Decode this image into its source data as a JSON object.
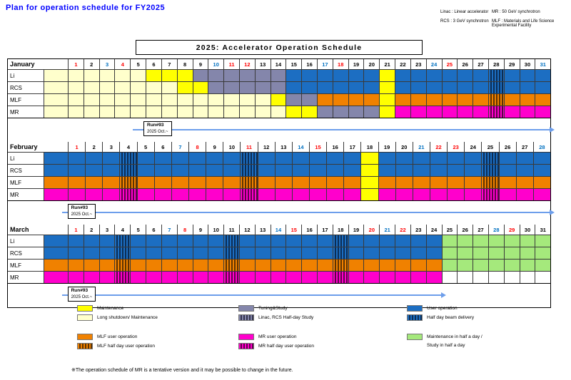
{
  "title": "Plan for operation schedule for FY2025",
  "abbr": {
    "l1a": "Linac : Linear accelerator",
    "l1b": "MR : 50 GeV synchrotron",
    "l2a": "RCS : 3 GeV synchrotron",
    "l2b": "MLF : Materials and Life Science Experimental Facility"
  },
  "colors": {
    "maintenance": "#FFFF00",
    "long_shutdown": "#FFFFCC",
    "tuning_study": "#8486AB",
    "user_operation": "#1C6EC2",
    "mlf_user_operation": "#F08100",
    "mr_user_operation": "#FF00CC",
    "half_day_green": "#A5E97C",
    "day_saturday": "#0070C0",
    "day_sunday_holiday": "#FF0000",
    "title_blue": "#0000FF",
    "run_arrow": "#6D9EEB"
  },
  "chart_data": {
    "type": "gantt",
    "title": "2025:  Accelerator Operation Schedule",
    "facilities": [
      "Li",
      "RCS",
      "MLF",
      "MR"
    ],
    "legend_position": "bottom",
    "months": [
      {
        "name": "January",
        "days": 31,
        "sundays_holidays": [
          1,
          4,
          11,
          12,
          18,
          25
        ],
        "saturdays": [
          3,
          10,
          17,
          24,
          31
        ],
        "rows": [
          {
            "label": "Li",
            "prev": "shutdown",
            "segments": [
              {
                "from": 1,
                "to": 5,
                "type": "shutdown"
              },
              {
                "from": 6,
                "to": 8,
                "type": "maintenance"
              },
              {
                "from": 9,
                "to": 14,
                "type": "tuning"
              },
              {
                "from": 15,
                "to": 20,
                "type": "user"
              },
              {
                "from": 21,
                "to": 21,
                "type": "maintenance"
              },
              {
                "from": 22,
                "to": 27,
                "type": "user"
              },
              {
                "from": 28,
                "to": 28,
                "type": "user_half"
              },
              {
                "from": 29,
                "to": 31,
                "type": "user"
              }
            ]
          },
          {
            "label": "RCS",
            "prev": "shutdown",
            "segments": [
              {
                "from": 1,
                "to": 7,
                "type": "shutdown"
              },
              {
                "from": 8,
                "to": 9,
                "type": "maintenance"
              },
              {
                "from": 10,
                "to": 14,
                "type": "tuning"
              },
              {
                "from": 15,
                "to": 20,
                "type": "user"
              },
              {
                "from": 21,
                "to": 21,
                "type": "maintenance"
              },
              {
                "from": 22,
                "to": 27,
                "type": "user"
              },
              {
                "from": 28,
                "to": 28,
                "type": "user_half"
              },
              {
                "from": 29,
                "to": 31,
                "type": "user"
              }
            ]
          },
          {
            "label": "MLF",
            "prev": "shutdown",
            "segments": [
              {
                "from": 1,
                "to": 13,
                "type": "shutdown"
              },
              {
                "from": 14,
                "to": 14,
                "type": "maintenance"
              },
              {
                "from": 15,
                "to": 16,
                "type": "tuning"
              },
              {
                "from": 17,
                "to": 20,
                "type": "mlf_user"
              },
              {
                "from": 21,
                "to": 21,
                "type": "maintenance"
              },
              {
                "from": 22,
                "to": 27,
                "type": "mlf_user"
              },
              {
                "from": 28,
                "to": 28,
                "type": "mlf_half"
              },
              {
                "from": 29,
                "to": 31,
                "type": "mlf_user"
              }
            ]
          },
          {
            "label": "MR",
            "prev": "shutdown",
            "segments": [
              {
                "from": 1,
                "to": 14,
                "type": "shutdown"
              },
              {
                "from": 15,
                "to": 16,
                "type": "maintenance"
              },
              {
                "from": 17,
                "to": 20,
                "type": "tuning"
              },
              {
                "from": 21,
                "to": 21,
                "type": "maintenance"
              },
              {
                "from": 22,
                "to": 27,
                "type": "mr_user"
              },
              {
                "from": 28,
                "to": 28,
                "type": "mr_half"
              },
              {
                "from": 29,
                "to": 31,
                "type": "mr_user"
              }
            ]
          }
        ],
        "run": {
          "label": "Run#93",
          "period": "2025 Oct.~",
          "box_left_pct": 25,
          "arrow_start_pct": 23,
          "arrow_end_pct": 100
        }
      },
      {
        "name": "February",
        "days": 28,
        "sundays_holidays": [
          1,
          8,
          11,
          15,
          22,
          23
        ],
        "saturdays": [
          7,
          14,
          21,
          28
        ],
        "rows": [
          {
            "label": "Li",
            "prev": "user",
            "segments": [
              {
                "from": 1,
                "to": 3,
                "type": "user"
              },
              {
                "from": 4,
                "to": 4,
                "type": "user_half"
              },
              {
                "from": 5,
                "to": 10,
                "type": "user"
              },
              {
                "from": 11,
                "to": 11,
                "type": "user_half"
              },
              {
                "from": 12,
                "to": 17,
                "type": "user"
              },
              {
                "from": 18,
                "to": 18,
                "type": "maintenance"
              },
              {
                "from": 19,
                "to": 24,
                "type": "user"
              },
              {
                "from": 25,
                "to": 25,
                "type": "user_half"
              },
              {
                "from": 26,
                "to": 28,
                "type": "user"
              }
            ]
          },
          {
            "label": "RCS",
            "prev": "user",
            "segments": [
              {
                "from": 1,
                "to": 3,
                "type": "user"
              },
              {
                "from": 4,
                "to": 4,
                "type": "user_half"
              },
              {
                "from": 5,
                "to": 10,
                "type": "user"
              },
              {
                "from": 11,
                "to": 11,
                "type": "user_half"
              },
              {
                "from": 12,
                "to": 17,
                "type": "user"
              },
              {
                "from": 18,
                "to": 18,
                "type": "maintenance"
              },
              {
                "from": 19,
                "to": 24,
                "type": "user"
              },
              {
                "from": 25,
                "to": 25,
                "type": "user_half"
              },
              {
                "from": 26,
                "to": 28,
                "type": "user"
              }
            ]
          },
          {
            "label": "MLF",
            "prev": "mlf_user",
            "segments": [
              {
                "from": 1,
                "to": 3,
                "type": "mlf_user"
              },
              {
                "from": 4,
                "to": 4,
                "type": "mlf_half"
              },
              {
                "from": 5,
                "to": 10,
                "type": "mlf_user"
              },
              {
                "from": 11,
                "to": 11,
                "type": "mlf_half"
              },
              {
                "from": 12,
                "to": 17,
                "type": "mlf_user"
              },
              {
                "from": 18,
                "to": 18,
                "type": "maintenance"
              },
              {
                "from": 19,
                "to": 24,
                "type": "mlf_user"
              },
              {
                "from": 25,
                "to": 25,
                "type": "mlf_half"
              },
              {
                "from": 26,
                "to": 28,
                "type": "mlf_user"
              }
            ]
          },
          {
            "label": "MR",
            "prev": "mr_user",
            "segments": [
              {
                "from": 1,
                "to": 3,
                "type": "mr_user"
              },
              {
                "from": 4,
                "to": 4,
                "type": "mr_half"
              },
              {
                "from": 5,
                "to": 10,
                "type": "mr_user"
              },
              {
                "from": 11,
                "to": 11,
                "type": "mr_half"
              },
              {
                "from": 12,
                "to": 17,
                "type": "mr_user"
              },
              {
                "from": 18,
                "to": 18,
                "type": "maintenance"
              },
              {
                "from": 19,
                "to": 24,
                "type": "mr_user"
              },
              {
                "from": 25,
                "to": 25,
                "type": "mr_half"
              },
              {
                "from": 26,
                "to": 28,
                "type": "mr_user"
              }
            ]
          }
        ],
        "run": {
          "label": "Run#93",
          "period": "2025 Oct.~",
          "box_left_pct": 11,
          "arrow_start_pct": 10,
          "arrow_end_pct": 100
        }
      },
      {
        "name": "March",
        "days": 31,
        "sundays_holidays": [
          1,
          8,
          15,
          20,
          22,
          29
        ],
        "saturdays": [
          7,
          14,
          21,
          28
        ],
        "rows": [
          {
            "label": "Li",
            "prev": "user",
            "segments": [
              {
                "from": 1,
                "to": 3,
                "type": "user"
              },
              {
                "from": 4,
                "to": 4,
                "type": "user_half"
              },
              {
                "from": 5,
                "to": 10,
                "type": "user"
              },
              {
                "from": 11,
                "to": 11,
                "type": "user_half"
              },
              {
                "from": 12,
                "to": 17,
                "type": "user"
              },
              {
                "from": 18,
                "to": 18,
                "type": "user_half"
              },
              {
                "from": 19,
                "to": 24,
                "type": "user"
              },
              {
                "from": 25,
                "to": 31,
                "type": "half_green"
              }
            ]
          },
          {
            "label": "RCS",
            "prev": "user",
            "segments": [
              {
                "from": 1,
                "to": 3,
                "type": "user"
              },
              {
                "from": 4,
                "to": 4,
                "type": "user_half"
              },
              {
                "from": 5,
                "to": 10,
                "type": "user"
              },
              {
                "from": 11,
                "to": 11,
                "type": "user_half"
              },
              {
                "from": 12,
                "to": 17,
                "type": "user"
              },
              {
                "from": 18,
                "to": 18,
                "type": "user_half"
              },
              {
                "from": 19,
                "to": 24,
                "type": "user"
              },
              {
                "from": 25,
                "to": 31,
                "type": "half_green"
              }
            ]
          },
          {
            "label": "MLF",
            "prev": "mlf_user",
            "segments": [
              {
                "from": 1,
                "to": 3,
                "type": "mlf_user"
              },
              {
                "from": 4,
                "to": 4,
                "type": "mlf_half"
              },
              {
                "from": 5,
                "to": 10,
                "type": "mlf_user"
              },
              {
                "from": 11,
                "to": 11,
                "type": "mlf_half"
              },
              {
                "from": 12,
                "to": 17,
                "type": "mlf_user"
              },
              {
                "from": 18,
                "to": 18,
                "type": "mlf_half"
              },
              {
                "from": 19,
                "to": 24,
                "type": "mlf_user"
              },
              {
                "from": 25,
                "to": 31,
                "type": "half_green"
              }
            ]
          },
          {
            "label": "MR",
            "prev": "mr_user",
            "segments": [
              {
                "from": 1,
                "to": 3,
                "type": "mr_user"
              },
              {
                "from": 4,
                "to": 4,
                "type": "mr_half"
              },
              {
                "from": 5,
                "to": 10,
                "type": "mr_user"
              },
              {
                "from": 11,
                "to": 11,
                "type": "mr_half"
              },
              {
                "from": 12,
                "to": 17,
                "type": "mr_user"
              },
              {
                "from": 18,
                "to": 18,
                "type": "mr_half"
              },
              {
                "from": 19,
                "to": 24,
                "type": "mr_user"
              },
              {
                "from": 25,
                "to": 31,
                "type": "empty"
              }
            ]
          }
        ],
        "run": {
          "label": "Run#93",
          "period": "2025 Oct.~",
          "box_left_pct": 11,
          "arrow_start_pct": 10,
          "arrow_end_pct": 80
        }
      }
    ]
  },
  "legend": {
    "groups": [
      {
        "items": [
          {
            "type": "maintenance",
            "label": "Maintenance"
          },
          {
            "type": "shutdown",
            "label": "Long shutdown/ Maintenance"
          }
        ]
      },
      {
        "items": [
          {
            "type": "tuning",
            "label": "Tuning&Study"
          },
          {
            "type": "tuning_half",
            "label": "Linac, RCS Half-day Study"
          }
        ]
      },
      {
        "items": [
          {
            "type": "user",
            "label": "User operation"
          },
          {
            "type": "user_half",
            "label": "Half day beam delivery"
          }
        ]
      },
      {
        "items": [
          {
            "type": "mlf_user",
            "label": "MLF user operation"
          },
          {
            "type": "mlf_half",
            "label": "MLF half day user operation"
          }
        ]
      },
      {
        "items": [
          {
            "type": "mr_user",
            "label": "MR user operation"
          },
          {
            "type": "mr_half",
            "label": "MR half day user operation"
          }
        ]
      },
      {
        "items": [
          {
            "type": "half_green",
            "label": "Maintenance in half a day /",
            "label2": "Study in half a day"
          }
        ]
      }
    ]
  },
  "footnote": "※The operation schedule of MR is a tentative version and it may be possible to change in the future."
}
